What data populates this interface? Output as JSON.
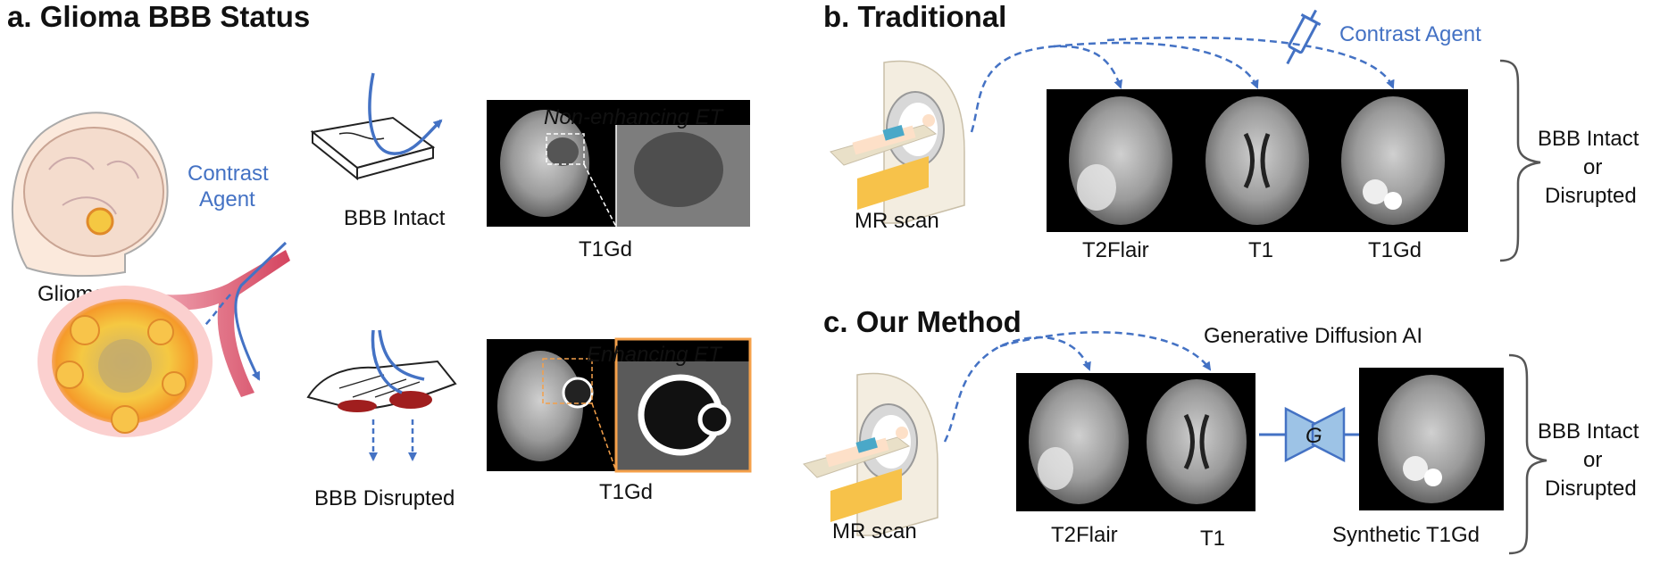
{
  "panel_a": {
    "title": "a. Glioma BBB Status",
    "contrast_agent": [
      "Contrast",
      "Agent"
    ],
    "glioma_label": "Glioma",
    "intact": {
      "label": "BBB Intact",
      "overlay": "Non-enhancing ET",
      "scan_caption": "T1Gd"
    },
    "disrupted": {
      "label": "BBB Disrupted",
      "overlay": "Enhancing  ET",
      "scan_caption": "T1Gd"
    }
  },
  "panel_b": {
    "title": "b. Traditional",
    "contrast_agent": "Contrast Agent",
    "scanner_label": "MR scan",
    "scan_labels": [
      "T2Flair",
      "T1",
      "T1Gd"
    ],
    "outcome": [
      "BBB Intact",
      "or",
      "Disrupted"
    ]
  },
  "panel_c": {
    "title": "c. Our Method",
    "method_label": "Generative Diffusion AI",
    "scanner_label": "MR scan",
    "scan_labels": [
      "T2Flair",
      "T1"
    ],
    "generator_symbol": "G",
    "output_label": "Synthetic T1Gd",
    "outcome": [
      "BBB Intact",
      "or",
      "Disrupted"
    ]
  },
  "colors": {
    "accent_blue": "#4472c4",
    "orange": "#f4a04a",
    "vessel_red": "#d9536b",
    "scan_bg": "#000000"
  }
}
